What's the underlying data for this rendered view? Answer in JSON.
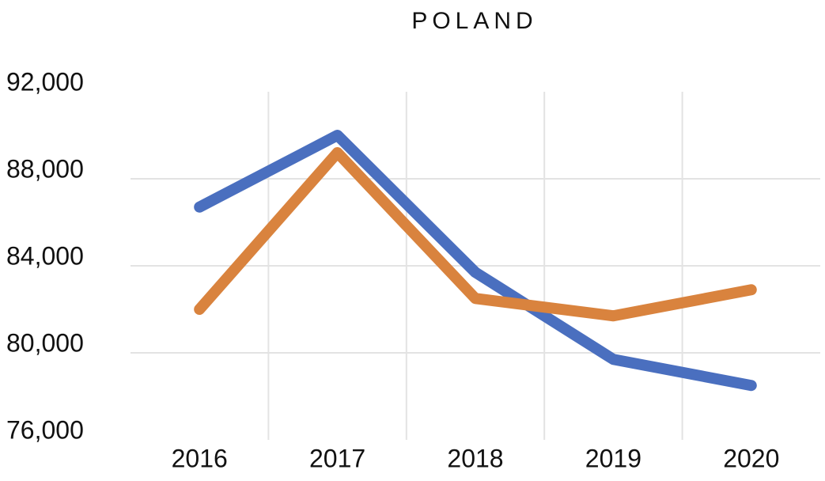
{
  "chart_data": {
    "type": "line",
    "title": "POLAND",
    "categories": [
      "2016",
      "2017",
      "2018",
      "2019",
      "2020"
    ],
    "series": [
      {
        "color": "#4a6fbf",
        "values": [
          86700,
          90000,
          83700,
          79700,
          78500
        ]
      },
      {
        "color": "#d9833e",
        "values": [
          82000,
          89200,
          82500,
          81700,
          82900
        ]
      }
    ],
    "ylim": [
      76000,
      92000
    ],
    "yticks": [
      {
        "value": 76000,
        "label": "76,000"
      },
      {
        "value": 80000,
        "label": "80,000"
      },
      {
        "value": 84000,
        "label": "84,000"
      },
      {
        "value": 88000,
        "label": "88,000"
      },
      {
        "value": 92000,
        "label": "92,000"
      }
    ],
    "grid": true
  }
}
